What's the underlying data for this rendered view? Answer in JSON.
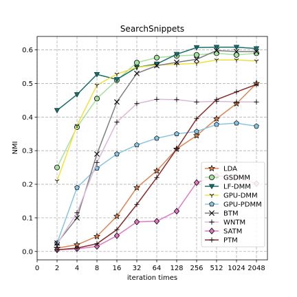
{
  "chart_data": {
    "type": "line",
    "title": "SearchSnippets",
    "xlabel": "iteration times",
    "ylabel": "NMI",
    "x_ticks": [
      "0",
      "2",
      "4",
      "8",
      "16",
      "32",
      "64",
      "128",
      "256",
      "512",
      "1024",
      "2048"
    ],
    "x": [
      "2",
      "4",
      "8",
      "16",
      "32",
      "64",
      "128",
      "256",
      "512",
      "1024",
      "2048"
    ],
    "y_ticks": [
      "0.0",
      "0.1",
      "0.2",
      "0.3",
      "0.4",
      "0.5",
      "0.6"
    ],
    "ylim": [
      -0.025,
      0.64
    ],
    "grid": true,
    "legend_position": "lower-right",
    "series": [
      {
        "name": "LDA",
        "color": "#dd8452",
        "marker": "star",
        "values": [
          0.01,
          0.02,
          0.045,
          0.105,
          0.19,
          0.24,
          0.305,
          0.345,
          0.395,
          0.44,
          0.5
        ]
      },
      {
        "name": "GSDMM",
        "color": "#a6e0a0",
        "marker": "circle",
        "values": [
          0.25,
          0.37,
          0.455,
          0.51,
          0.562,
          0.577,
          0.582,
          0.585,
          0.59,
          0.585,
          0.59
        ]
      },
      {
        "name": "LF-DMM",
        "color": "#1a6e6a",
        "marker": "triangle-down",
        "values": [
          0.42,
          0.467,
          0.527,
          0.512,
          0.548,
          0.558,
          0.587,
          0.607,
          0.608,
          0.608,
          0.604
        ]
      },
      {
        "name": "GPU-DMM",
        "color": "#f2e03a",
        "marker": "tri-down",
        "values": [
          0.21,
          0.375,
          0.495,
          0.528,
          0.548,
          0.555,
          0.557,
          0.56,
          0.57,
          0.57,
          0.567
        ]
      },
      {
        "name": "GPU-PDMM",
        "color": "#89c5e3",
        "marker": "pentagon",
        "values": [
          0.025,
          0.19,
          0.248,
          0.29,
          0.317,
          0.337,
          0.35,
          0.357,
          0.378,
          0.382,
          0.373
        ]
      },
      {
        "name": "BTM",
        "color": "#7f7f7f",
        "marker": "x",
        "values": [
          0.025,
          0.1,
          0.29,
          0.445,
          0.53,
          0.553,
          0.563,
          0.572,
          0.598,
          0.595,
          0.595
        ]
      },
      {
        "name": "WNTM",
        "color": "#dbb8d6",
        "marker": "plus",
        "values": [
          0.022,
          0.115,
          0.265,
          0.385,
          0.44,
          0.453,
          0.452,
          0.445,
          0.447,
          0.445,
          0.445
        ]
      },
      {
        "name": "SATM",
        "color": "#e377c2",
        "marker": "diamond",
        "values": [
          0.005,
          0.008,
          0.015,
          0.047,
          0.088,
          0.09,
          0.12,
          0.205,
          0.225,
          0.222,
          0.202
        ]
      },
      {
        "name": "PTM",
        "color": "#8b2a2a",
        "marker": "plus",
        "values": [
          0.005,
          0.01,
          0.023,
          0.065,
          0.14,
          0.22,
          0.305,
          0.395,
          0.452,
          0.475,
          0.497
        ]
      }
    ]
  }
}
